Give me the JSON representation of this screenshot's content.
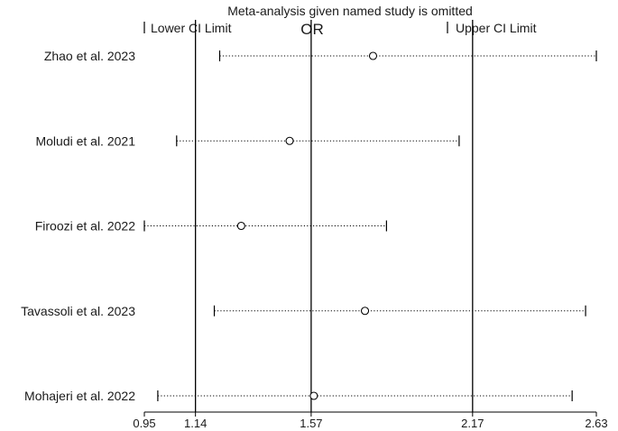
{
  "chart_data": {
    "type": "forest",
    "title": "Meta-analysis given named study is omitted",
    "legend": {
      "lower": "Lower CI Limit",
      "center": "OR",
      "upper": "Upper CI Limit"
    },
    "xlim": [
      0.95,
      2.63
    ],
    "xticks": [
      "0.95",
      "1.14",
      "1.57",
      "2.17",
      "2.63"
    ],
    "reference_lines": [
      1.14,
      1.57,
      2.17
    ],
    "studies": [
      {
        "name": "Zhao et al. 2023",
        "lower": 1.23,
        "or": 1.8,
        "upper": 2.63
      },
      {
        "name": "Moludi et al. 2021",
        "lower": 1.07,
        "or": 1.49,
        "upper": 2.12
      },
      {
        "name": "Firoozi et al. 2022",
        "lower": 0.95,
        "or": 1.31,
        "upper": 1.85
      },
      {
        "name": "Tavassoli et al. 2023",
        "lower": 1.21,
        "or": 1.77,
        "upper": 2.59
      },
      {
        "name": "Mohajeri et al. 2022",
        "lower": 1.0,
        "or": 1.58,
        "upper": 2.54
      }
    ]
  }
}
